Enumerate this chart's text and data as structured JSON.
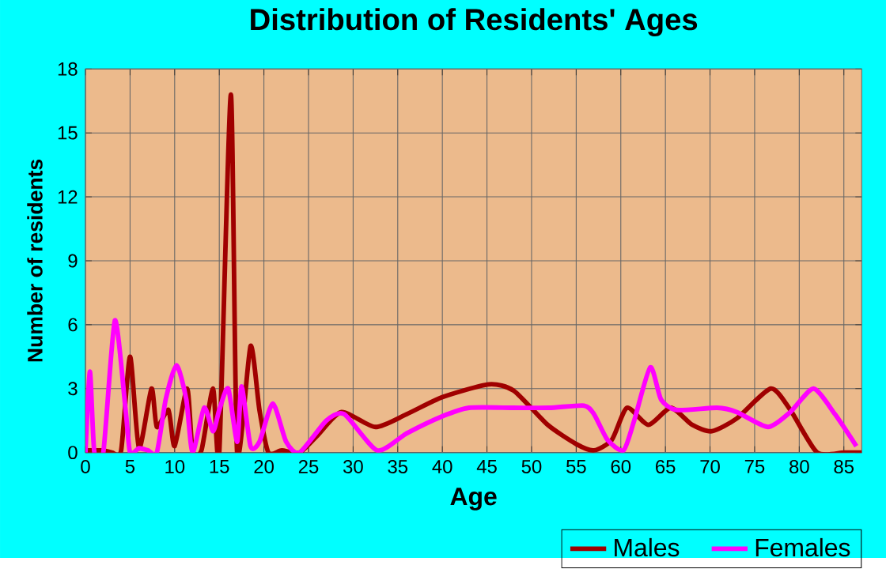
{
  "chart_data": {
    "type": "line",
    "title": "Distribution of Residents' Ages",
    "xlabel": "Age",
    "ylabel": "Number of residents",
    "xlim": [
      0,
      87
    ],
    "xticks": [
      0,
      5,
      10,
      15,
      20,
      25,
      30,
      35,
      40,
      45,
      50,
      55,
      60,
      65,
      70,
      75,
      80,
      85
    ],
    "ylim": [
      0,
      18
    ],
    "yticks": [
      0,
      3,
      6,
      9,
      12,
      15,
      18
    ],
    "grid": true,
    "legend": "bottom right",
    "series": [
      {
        "name": "Males",
        "color": "#a00000",
        "x": [
          0,
          1,
          2,
          3,
          4,
          5,
          6,
          7.4,
          8,
          9.3,
          10,
          11.4,
          12,
          13,
          14.3,
          15,
          16.3,
          17,
          18.5,
          19.5,
          20.5,
          22,
          24,
          26,
          28.7,
          32.5,
          36,
          40,
          45.2,
          48,
          51.8,
          55,
          57,
          59,
          60.7,
          63.1,
          65.6,
          68,
          70.2,
          73,
          76.8,
          79,
          82,
          85,
          87
        ],
        "values": [
          0.1,
          0.1,
          0.1,
          0,
          0.1,
          4.5,
          0.2,
          3.0,
          1.2,
          2.0,
          0.3,
          3.0,
          0.1,
          0.1,
          3.0,
          0,
          16.8,
          0,
          5.0,
          2.0,
          0,
          0.1,
          0,
          0.8,
          1.9,
          1.2,
          1.8,
          2.6,
          3.2,
          2.9,
          1.3,
          0.4,
          0.1,
          0.6,
          2.1,
          1.3,
          2.1,
          1.3,
          1.0,
          1.6,
          3.0,
          2.0,
          0,
          0,
          0
        ]
      },
      {
        "name": "Females",
        "color": "#ff00ff",
        "x": [
          0,
          0.5,
          1,
          2,
          3.3,
          4.5,
          5,
          6,
          7,
          8,
          9,
          10.2,
          11.3,
          12,
          13.3,
          14.3,
          15,
          16,
          17,
          17.5,
          18.5,
          19.5,
          21,
          22.5,
          24,
          27,
          29,
          32.7,
          36,
          40,
          43,
          48,
          52,
          55.9,
          57,
          58.5,
          60.3,
          61.5,
          63.3,
          64.5,
          66.2,
          70.8,
          73,
          76.5,
          79,
          81.6,
          84,
          86.4
        ],
        "values": [
          0,
          3.8,
          0,
          0,
          6.2,
          2.0,
          0,
          0.2,
          0.1,
          0,
          2.5,
          4.1,
          2.5,
          0,
          2.1,
          1.0,
          2.0,
          3.0,
          0.5,
          3.1,
          0.3,
          0.5,
          2.3,
          0.5,
          0,
          1.5,
          1.8,
          0.1,
          0.9,
          1.7,
          2.1,
          2.1,
          2.1,
          2.2,
          1.8,
          0.6,
          0.1,
          1.5,
          4.0,
          2.5,
          2.0,
          2.1,
          1.9,
          1.2,
          1.9,
          3.0,
          1.8,
          0.3
        ]
      }
    ]
  }
}
